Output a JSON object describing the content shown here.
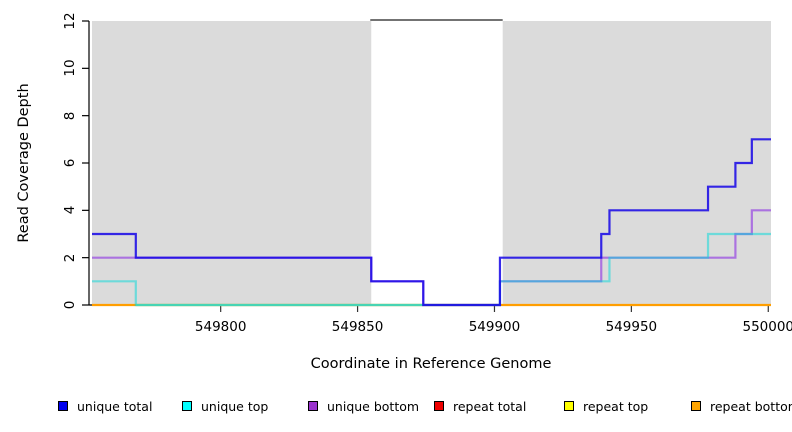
{
  "chart_data": {
    "type": "line",
    "subtype": "step-coverage-plot",
    "title": "",
    "xlabel": "Coordinate in Reference Genome",
    "ylabel": "Read Coverage Depth",
    "xlim": [
      549753,
      550001
    ],
    "ylim": [
      0,
      12
    ],
    "x_ticks": [
      549800,
      549850,
      549900,
      549950,
      550000
    ],
    "y_ticks": [
      0,
      2,
      4,
      6,
      8,
      10,
      12
    ],
    "grid": false,
    "legend_position": "bottom",
    "background_color": "#ffffff",
    "shaded_regions": [
      {
        "x_from": 549753,
        "x_to": 549855,
        "color": "#DBDBDB"
      },
      {
        "x_from": 549903,
        "x_to": 550001,
        "color": "#DBDBDB"
      }
    ],
    "masked_gap": {
      "x_from": 549855,
      "x_to": 549903,
      "cap_color": "#737373"
    },
    "series": [
      {
        "name": "unique total",
        "legend_color": "#0000EE",
        "line_color": "#1505E6",
        "opacity": 0.85,
        "steps": [
          [
            549753,
            3
          ],
          [
            549769,
            2
          ],
          [
            549855,
            1
          ],
          [
            549874,
            0
          ],
          [
            549902,
            2
          ],
          [
            549939,
            3
          ],
          [
            549942,
            4
          ],
          [
            549978,
            5
          ],
          [
            549988,
            6
          ],
          [
            549994,
            7
          ]
        ]
      },
      {
        "name": "unique top",
        "legend_color": "#00FFFF",
        "line_color": "#00D9D9",
        "opacity": 0.5,
        "steps": [
          [
            549753,
            1
          ],
          [
            549769,
            0
          ],
          [
            549902,
            1
          ],
          [
            549942,
            2
          ],
          [
            549978,
            3
          ]
        ]
      },
      {
        "name": "unique bottom",
        "legend_color": "#9A32CD",
        "line_color": "#8A2BE2",
        "opacity": 0.6,
        "steps": [
          [
            549753,
            2
          ],
          [
            549855,
            1
          ],
          [
            549874,
            0
          ],
          [
            549902,
            1
          ],
          [
            549939,
            2
          ],
          [
            549988,
            3
          ],
          [
            549994,
            4
          ]
        ]
      },
      {
        "name": "repeat total",
        "legend_color": "#EE0000",
        "line_color": "#EE0000",
        "opacity": 0.8,
        "steps": [
          [
            549753,
            0
          ]
        ]
      },
      {
        "name": "repeat top",
        "legend_color": "#FFFF00",
        "line_color": "#FFE800",
        "opacity": 0.8,
        "steps": [
          [
            549753,
            0
          ]
        ]
      },
      {
        "name": "repeat bottom",
        "legend_color": "#FFA500",
        "line_color": "#FF9E00",
        "opacity": 1,
        "steps": [
          [
            549753,
            0
          ]
        ]
      }
    ],
    "overlap_segments": [
      {
        "label": "unique-top and repeat-top overlap at zero",
        "color": "#8FCE8F",
        "y": 0,
        "x_from": 549769,
        "x_to": 549874
      }
    ]
  },
  "legend": {
    "items": [
      {
        "label": "unique total",
        "color": "#0000EE"
      },
      {
        "label": "unique top",
        "color": "#00FFFF"
      },
      {
        "label": "unique bottom",
        "color": "#9A32CD"
      },
      {
        "label": "repeat total",
        "color": "#EE0000"
      },
      {
        "label": "repeat top",
        "color": "#FFFF00"
      },
      {
        "label": "repeat bottom",
        "color": "#FFA500"
      }
    ]
  }
}
